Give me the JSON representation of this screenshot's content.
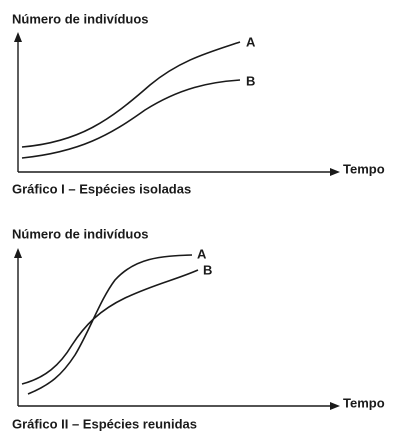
{
  "graph_1": {
    "y_label": "Número de indivíduos",
    "x_label": "Tempo",
    "curve_labels": [
      "A",
      "B"
    ],
    "caption": "Gráfico I – Espécies isoladas"
  },
  "graph_2": {
    "y_label": "Número de indivíduos",
    "x_label": "Tempo",
    "curve_labels": [
      "A",
      "B"
    ],
    "caption": "Gráfico II – Espécies reunidas"
  }
}
